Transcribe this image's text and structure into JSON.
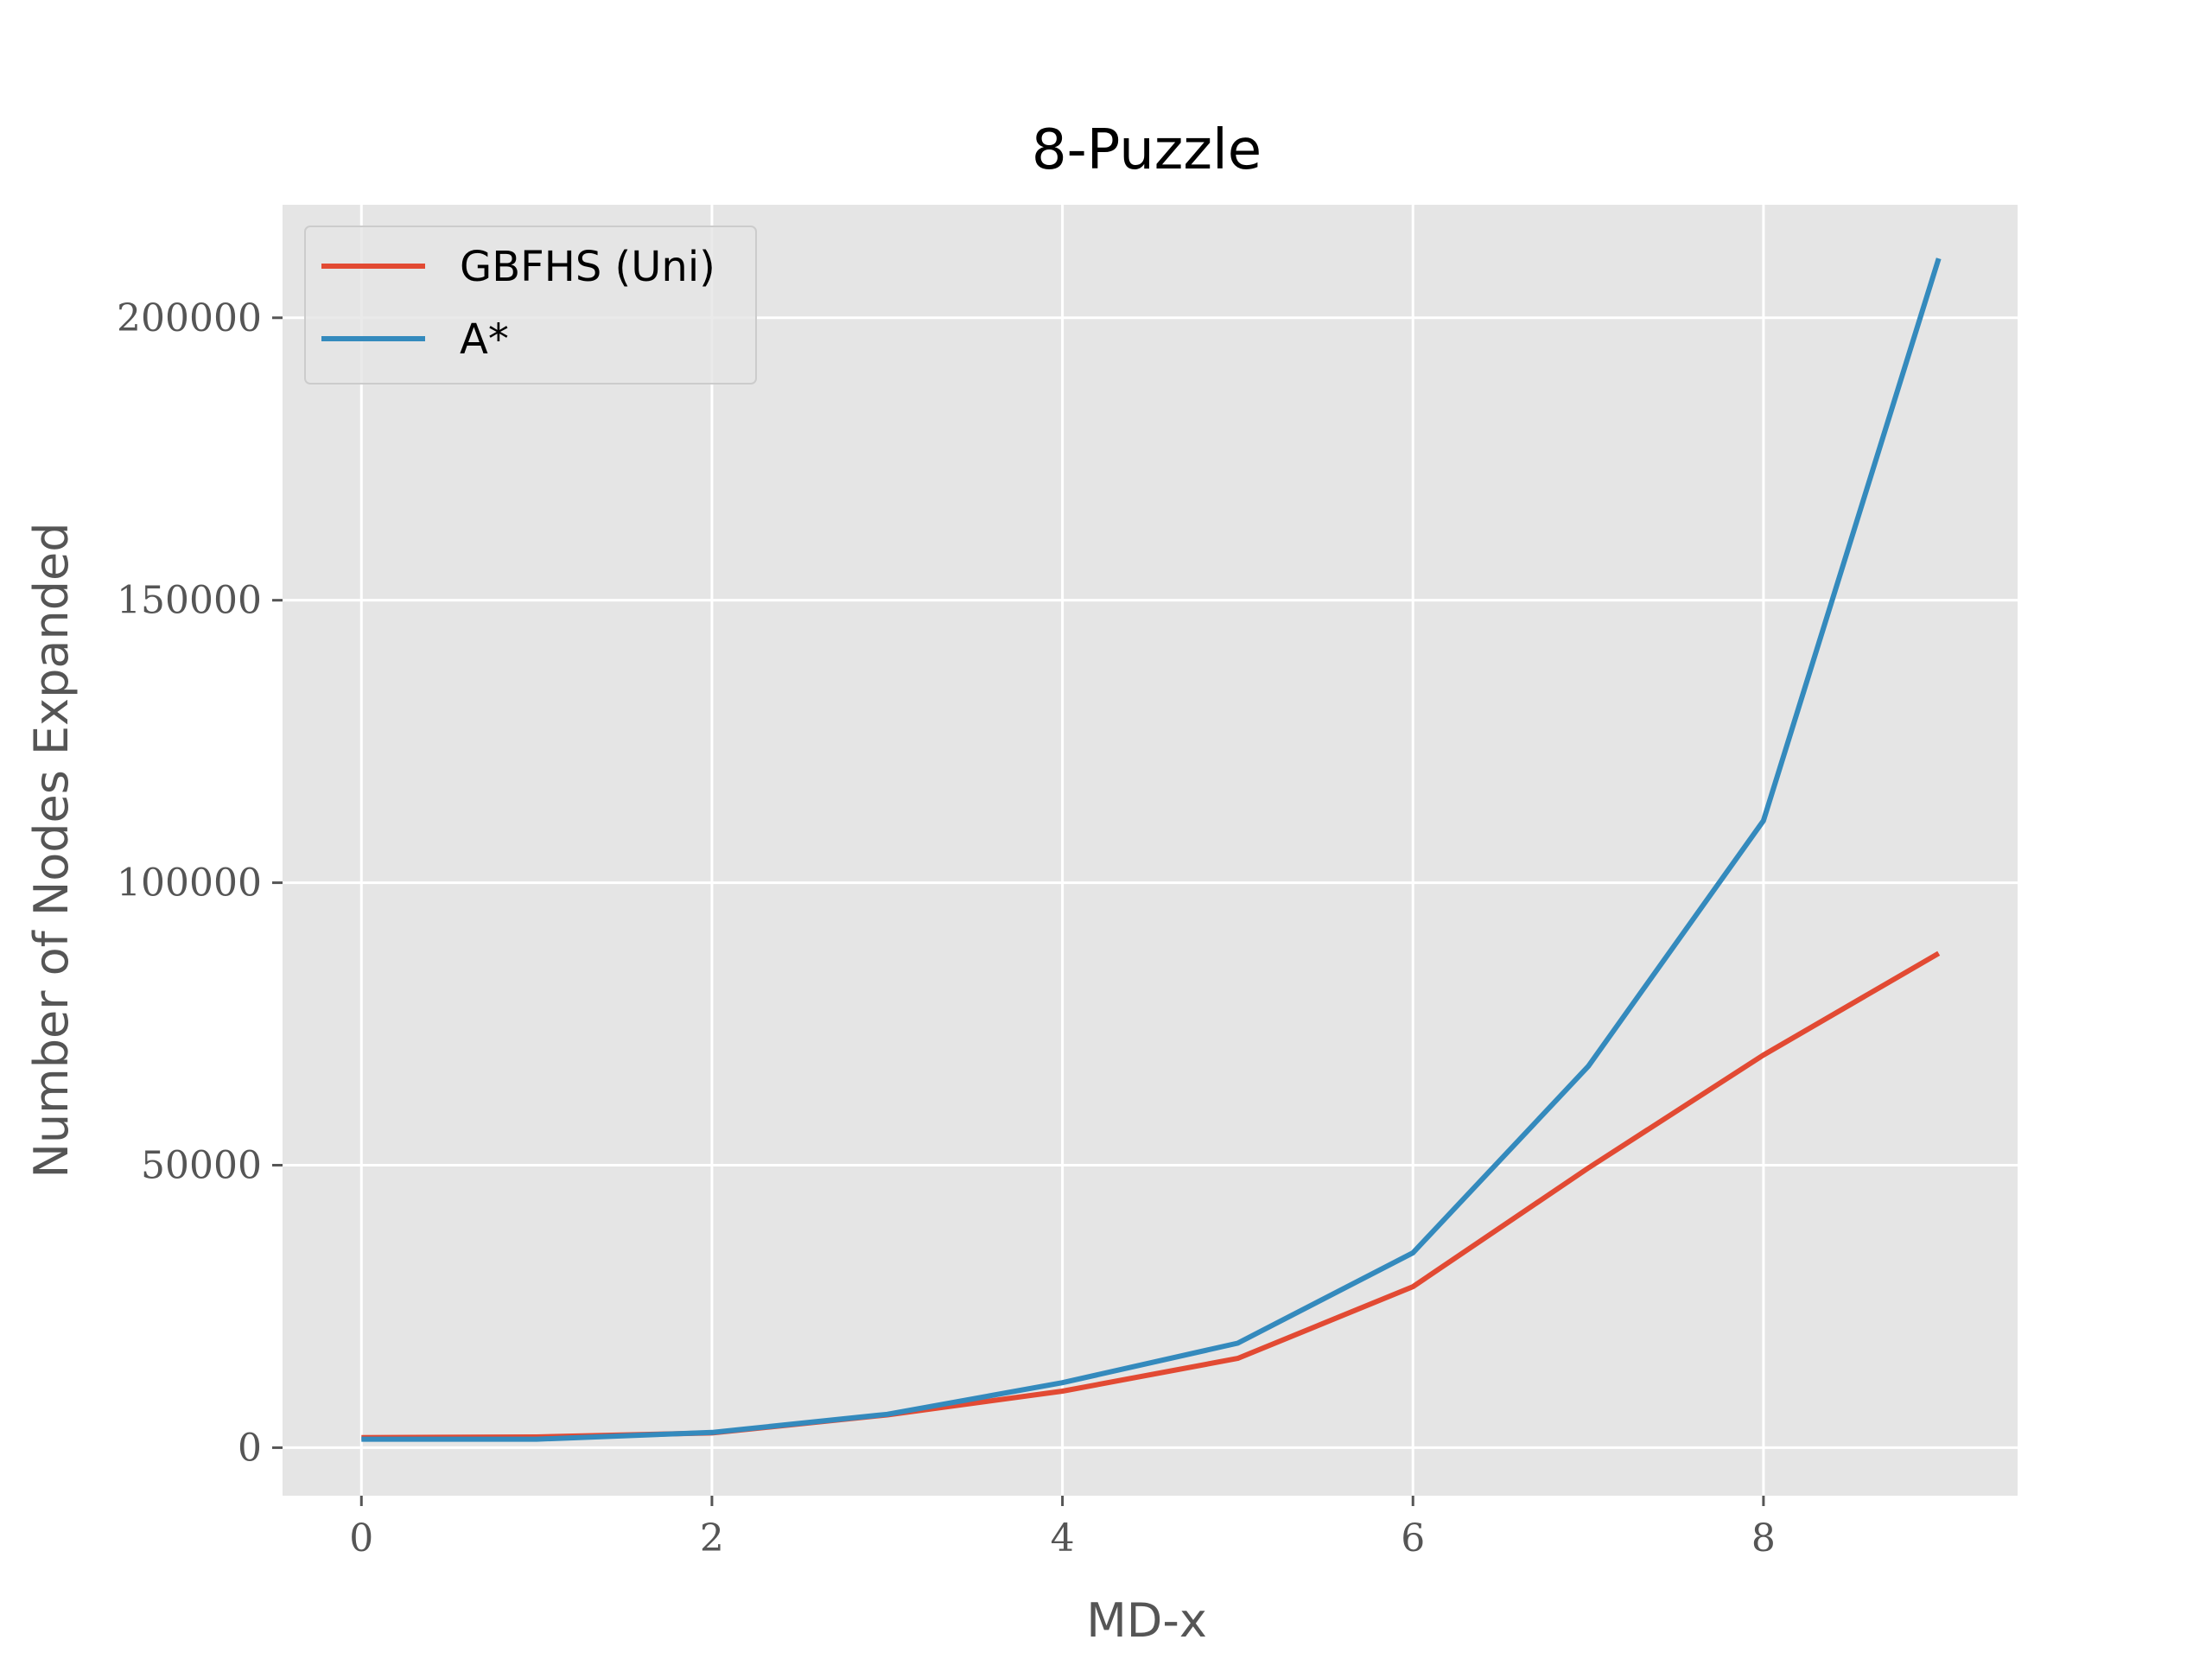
{
  "chart_data": {
    "type": "line",
    "title": "8-Puzzle",
    "xlabel": "MD-x",
    "ylabel": "Number of Nodes Expanded",
    "xlim": [
      -0.45,
      9.45
    ],
    "ylim": [
      -8500,
      220000
    ],
    "xticks": [
      0,
      2,
      4,
      6,
      8
    ],
    "yticks": [
      0,
      50000,
      100000,
      150000,
      200000
    ],
    "grid": true,
    "legend_position": "top-left",
    "x": [
      0,
      1,
      2,
      3,
      4,
      5,
      6,
      7,
      8,
      9
    ],
    "series": [
      {
        "name": "GBFHS (Uni)",
        "color": "#E24A33",
        "values": [
          1800,
          1900,
          2600,
          5800,
          10000,
          15800,
          28500,
          49500,
          69500,
          87500
        ]
      },
      {
        "name": "A*",
        "color": "#348ABD",
        "values": [
          1500,
          1500,
          2700,
          5900,
          11500,
          18500,
          34500,
          67500,
          111000,
          210500
        ]
      }
    ]
  },
  "style": {
    "plot_background": "#E5E5E5",
    "grid_color": "#FFFFFF"
  }
}
